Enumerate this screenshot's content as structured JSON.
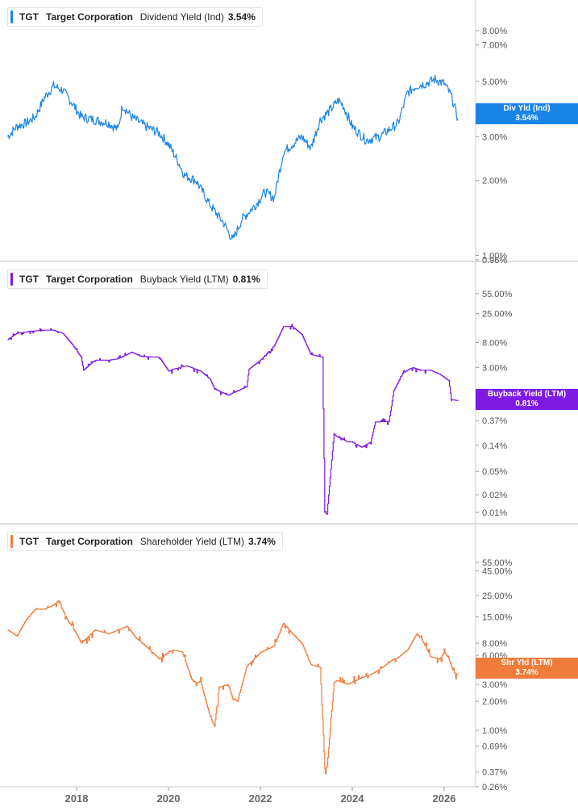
{
  "colors": {
    "dividend": "#1a84e6",
    "buyback": "#7e1ae6",
    "shareholder": "#f07c3c",
    "grid": "#dddddd",
    "axis_text": "#555555"
  },
  "x_axis": {
    "labels": [
      "2018",
      "2020",
      "2022",
      "2024",
      "2026"
    ]
  },
  "panels": [
    {
      "ticker": "TGT",
      "company": "Target Corporation",
      "metric": "Dividend Yield (Ind)",
      "value": "3.54%",
      "badge_title": "Div Yld (Ind)",
      "badge_value": "3.54%"
    },
    {
      "ticker": "TGT",
      "company": "Target Corporation",
      "metric": "Buyback Yield (LTM)",
      "value": "0.81%",
      "badge_title": "Buyback Yield (LTM)",
      "badge_value": "0.81%"
    },
    {
      "ticker": "TGT",
      "company": "Target Corporation",
      "metric": "Shareholder Yield (LTM)",
      "value": "3.74%",
      "badge_title": "Shr Yld (LTM)",
      "badge_value": "3.74%"
    }
  ],
  "chart_data": [
    {
      "type": "line",
      "title": "TGT Target Corporation Dividend Yield (Ind)",
      "scale": "log",
      "ylim": [
        0.96,
        9.0
      ],
      "y_ticks": [
        {
          "v": 8,
          "label": "8.00%"
        },
        {
          "v": 7,
          "label": "7.00%"
        },
        {
          "v": 5,
          "label": "5.00%"
        },
        {
          "v": 3,
          "label": "3.00%"
        },
        {
          "v": 2,
          "label": "2.00%"
        },
        {
          "v": 1,
          "label": "1.00%"
        },
        {
          "v": 0.96,
          "label": "0.96%"
        }
      ],
      "series": [
        {
          "name": "Dividend Yield (Ind)",
          "x": [
            2016.5,
            2016.7,
            2016.9,
            2017.1,
            2017.3,
            2017.5,
            2017.7,
            2017.9,
            2018.1,
            2018.4,
            2018.7,
            2018.9,
            2019.0,
            2019.2,
            2019.5,
            2019.8,
            2020.0,
            2020.2,
            2020.35,
            2020.6,
            2020.9,
            2021.2,
            2021.4,
            2021.6,
            2021.9,
            2022.1,
            2022.3,
            2022.5,
            2022.7,
            2022.9,
            2023.1,
            2023.3,
            2023.5,
            2023.7,
            2023.8,
            2024.0,
            2024.3,
            2024.6,
            2024.9,
            2025.0,
            2025.2,
            2025.4,
            2025.6,
            2025.8,
            2026.0,
            2026.15,
            2026.3
          ],
          "values": [
            3.0,
            3.3,
            3.4,
            3.6,
            4.3,
            4.8,
            4.6,
            4.1,
            3.6,
            3.5,
            3.4,
            3.2,
            4.0,
            3.6,
            3.3,
            3.1,
            2.8,
            2.4,
            2.1,
            2.0,
            1.6,
            1.35,
            1.15,
            1.4,
            1.6,
            1.8,
            1.7,
            2.6,
            2.8,
            3.0,
            2.7,
            3.5,
            3.8,
            4.2,
            4.0,
            3.3,
            2.9,
            3.0,
            3.3,
            3.4,
            4.5,
            4.8,
            4.9,
            5.1,
            4.9,
            4.4,
            3.54
          ]
        }
      ]
    },
    {
      "type": "line",
      "title": "TGT Target Corporation Buyback Yield (LTM)",
      "scale": "log",
      "ylim": [
        0.0085,
        100
      ],
      "y_ticks": [
        {
          "v": 55,
          "label": "55.00%"
        },
        {
          "v": 25,
          "label": "25.00%"
        },
        {
          "v": 8,
          "label": "8.00%"
        },
        {
          "v": 3,
          "label": "3.00%"
        },
        {
          "v": 0.37,
          "label": "0.37%"
        },
        {
          "v": 0.14,
          "label": "0.14%"
        },
        {
          "v": 0.05,
          "label": "0.05%"
        },
        {
          "v": 0.02,
          "label": "0.02%"
        },
        {
          "v": 0.01,
          "label": "0.01%"
        }
      ],
      "series": [
        {
          "name": "Buyback Yield (LTM)",
          "x": [
            2016.5,
            2016.7,
            2017.0,
            2017.3,
            2017.5,
            2017.7,
            2017.9,
            2018.1,
            2018.15,
            2018.4,
            2018.7,
            2018.9,
            2019.2,
            2019.4,
            2019.5,
            2019.8,
            2020.0,
            2020.1,
            2020.4,
            2020.7,
            2020.9,
            2021.0,
            2021.3,
            2021.4,
            2021.7,
            2021.75,
            2022.0,
            2022.3,
            2022.5,
            2022.7,
            2022.9,
            2023.1,
            2023.35,
            2023.4,
            2023.45,
            2023.6,
            2023.65,
            2023.9,
            2024.0,
            2024.2,
            2024.4,
            2024.5,
            2024.8,
            2024.9,
            2025.1,
            2025.3,
            2025.5,
            2025.7,
            2025.9,
            2026.1,
            2026.15,
            2026.3
          ],
          "values": [
            9.0,
            11.5,
            12.5,
            13.0,
            13.0,
            11.5,
            7.5,
            4.5,
            2.7,
            4.0,
            4.0,
            4.2,
            5.5,
            4.6,
            4.6,
            4.5,
            2.6,
            2.8,
            3.2,
            2.6,
            1.9,
            1.3,
            1.0,
            1.1,
            1.4,
            2.8,
            4.0,
            7.0,
            15.0,
            15.0,
            11.0,
            5.0,
            4.5,
            0.01,
            0.01,
            0.22,
            0.2,
            0.16,
            0.16,
            0.13,
            0.16,
            0.35,
            0.36,
            1.2,
            2.4,
            3.0,
            2.7,
            2.7,
            2.3,
            1.8,
            0.85,
            0.81
          ]
        }
      ]
    },
    {
      "type": "line",
      "title": "TGT Target Corporation Shareholder Yield (LTM)",
      "scale": "log",
      "ylim": [
        0.26,
        100
      ],
      "y_ticks": [
        {
          "v": 55,
          "label": "55.00%"
        },
        {
          "v": 45,
          "label": "45.00%"
        },
        {
          "v": 25,
          "label": "25.00%"
        },
        {
          "v": 15,
          "label": "15.00%"
        },
        {
          "v": 8,
          "label": "8.00%"
        },
        {
          "v": 6,
          "label": "6.00%"
        },
        {
          "v": 3,
          "label": "3.00%"
        },
        {
          "v": 2,
          "label": "2.00%"
        },
        {
          "v": 1,
          "label": "1.00%"
        },
        {
          "v": 0.69,
          "label": "0.69%"
        },
        {
          "v": 0.37,
          "label": "0.37%"
        },
        {
          "v": 0.26,
          "label": "0.26%"
        }
      ],
      "series": [
        {
          "name": "Shareholder Yield (LTM)",
          "x": [
            2016.5,
            2016.7,
            2016.9,
            2017.1,
            2017.3,
            2017.5,
            2017.6,
            2017.8,
            2018.0,
            2018.1,
            2018.4,
            2018.7,
            2018.9,
            2019.1,
            2019.3,
            2019.5,
            2019.8,
            2020.0,
            2020.1,
            2020.3,
            2020.5,
            2020.6,
            2020.7,
            2020.9,
            2021.0,
            2021.1,
            2021.3,
            2021.4,
            2021.5,
            2021.7,
            2022.0,
            2022.3,
            2022.5,
            2022.7,
            2022.9,
            2023.1,
            2023.3,
            2023.4,
            2023.45,
            2023.6,
            2023.65,
            2023.9,
            2024.2,
            2024.4,
            2024.6,
            2024.9,
            2025.0,
            2025.2,
            2025.4,
            2025.5,
            2025.7,
            2025.9,
            2026.0,
            2026.1,
            2026.2,
            2026.3
          ],
          "values": [
            11,
            9.5,
            14,
            18,
            18,
            20,
            22,
            14,
            10,
            8,
            11,
            10,
            11,
            12,
            9,
            7.5,
            5.5,
            6.5,
            6.8,
            6.5,
            3.4,
            3.1,
            3.2,
            1.4,
            1.1,
            2.8,
            3.0,
            2.1,
            2.0,
            4.6,
            6.4,
            7.5,
            13,
            10,
            8.0,
            4.8,
            4.5,
            0.4,
            0.42,
            3.1,
            3.3,
            3.0,
            3.5,
            3.8,
            4.3,
            5.5,
            5.7,
            6.8,
            10,
            9.0,
            5.8,
            5.5,
            6.5,
            5.5,
            4.0,
            3.74
          ]
        }
      ]
    }
  ]
}
